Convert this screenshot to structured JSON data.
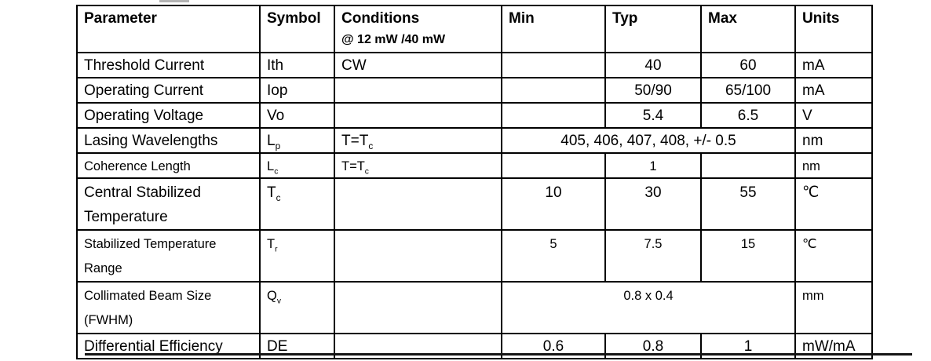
{
  "colors": {
    "table_border": "#000000",
    "text": "#000000",
    "page_divider": "#151515",
    "cropped_artifact": "#b3b3b3"
  },
  "table": {
    "header": {
      "parameter": "Parameter",
      "symbol": "Symbol",
      "conditions": "Conditions",
      "conditions_line2": "@ 12 mW /40 mW",
      "min": "Min",
      "typ": "Typ",
      "max": "Max",
      "units": "Units"
    },
    "rows": [
      {
        "parameter": "Threshold Current",
        "symbol": "Ith",
        "symbol_sub": "",
        "cond": "CW",
        "cond_sub": "",
        "min": "",
        "typ": "40",
        "max": "60",
        "merged": "",
        "units": "mA",
        "small": false,
        "tall": false
      },
      {
        "parameter": "Operating Current",
        "symbol": "Iop",
        "symbol_sub": "",
        "cond": "",
        "cond_sub": "",
        "min": "",
        "typ": "50/90",
        "max": "65/100",
        "merged": "",
        "units": "mA",
        "small": false,
        "tall": false
      },
      {
        "parameter": "Operating Voltage",
        "symbol": "Vo",
        "symbol_sub": "",
        "cond": "",
        "cond_sub": "",
        "min": "",
        "typ": "5.4",
        "max": "6.5",
        "merged": "",
        "units": "V",
        "small": false,
        "tall": false
      },
      {
        "parameter": "Lasing Wavelengths",
        "symbol": "L",
        "symbol_sub": "p",
        "cond": "T=T",
        "cond_sub": "c",
        "min": "",
        "typ": "",
        "max": "",
        "merged": "405, 406, 407, 408, +/- 0.5",
        "units": "nm",
        "small": false,
        "tall": false
      },
      {
        "parameter": "Coherence Length",
        "symbol": "L",
        "symbol_sub": "c",
        "cond": "T=T",
        "cond_sub": "c",
        "min": "",
        "typ": "1",
        "max": "",
        "merged": "",
        "units": "nm",
        "small": true,
        "tall": false
      },
      {
        "parameter": "Central Stabilized Temperature",
        "symbol": "T",
        "symbol_sub": "c",
        "cond": "",
        "cond_sub": "",
        "min": "10",
        "typ": "30",
        "max": "55",
        "merged": "",
        "units": "℃",
        "small": false,
        "tall": true
      },
      {
        "parameter": "Stabilized Temperature Range",
        "symbol": "T",
        "symbol_sub": "r",
        "cond": "",
        "cond_sub": "",
        "min": "5",
        "typ": "7.5",
        "max": "15",
        "merged": "",
        "units": "℃",
        "small": true,
        "tall": true
      },
      {
        "parameter": "Collimated Beam Size (FWHM)",
        "symbol": "Q",
        "symbol_sub": "v",
        "cond": "",
        "cond_sub": "",
        "min": "",
        "typ": "",
        "max": "",
        "merged": "0.8 x 0.4",
        "units": "mm",
        "small": true,
        "tall": true
      },
      {
        "parameter": "Differential Efficiency",
        "symbol": "DE",
        "symbol_sub": "",
        "cond": "",
        "cond_sub": "",
        "min": "0.6",
        "typ": "0.8",
        "max": "1",
        "merged": "",
        "units": "mW/mA",
        "small": false,
        "tall": false
      }
    ]
  }
}
